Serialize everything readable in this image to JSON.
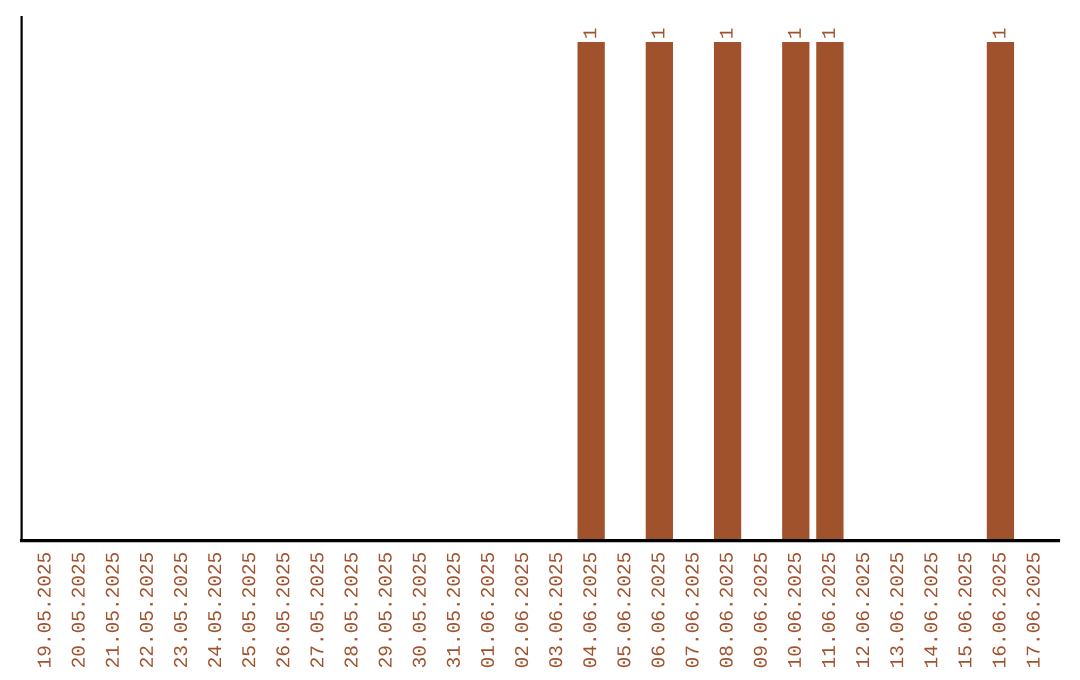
{
  "chart_data": {
    "type": "bar",
    "categories": [
      "19.05.2025",
      "20.05.2025",
      "21.05.2025",
      "22.05.2025",
      "23.05.2025",
      "24.05.2025",
      "25.05.2025",
      "26.05.2025",
      "27.05.2025",
      "28.05.2025",
      "29.05.2025",
      "30.05.2025",
      "31.05.2025",
      "01.06.2025",
      "02.06.2025",
      "03.06.2025",
      "04.06.2025",
      "05.06.2025",
      "06.06.2025",
      "07.06.2025",
      "08.06.2025",
      "09.06.2025",
      "10.06.2025",
      "11.06.2025",
      "12.06.2025",
      "13.06.2025",
      "14.06.2025",
      "15.06.2025",
      "16.06.2025",
      "17.06.2025"
    ],
    "values": [
      null,
      null,
      null,
      null,
      null,
      null,
      null,
      null,
      null,
      null,
      null,
      null,
      null,
      null,
      null,
      null,
      1,
      null,
      1,
      null,
      1,
      null,
      1,
      1,
      null,
      null,
      null,
      null,
      1,
      null
    ],
    "data_labels": true,
    "color": "#a0522d",
    "ylim": [
      0,
      1.05
    ],
    "tick_labels": "x",
    "grid": false,
    "legend": false
  }
}
